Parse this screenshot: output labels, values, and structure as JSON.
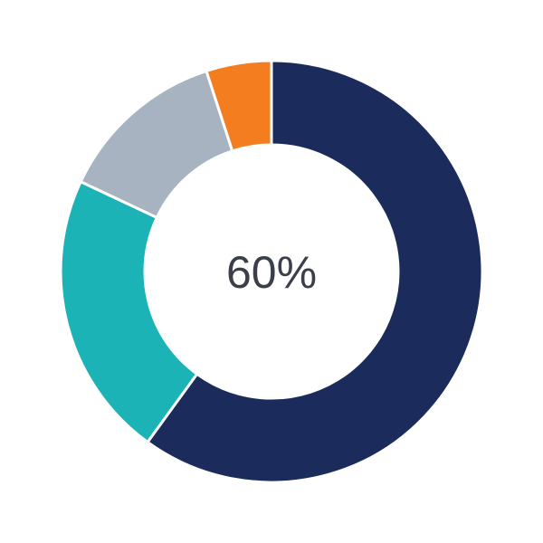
{
  "chart_data": {
    "type": "pie",
    "variant": "donut",
    "center_label": "60%",
    "slices": [
      {
        "value": 60,
        "color": "#1b2b5b"
      },
      {
        "value": 22,
        "color": "#1cb3b6"
      },
      {
        "value": 13,
        "color": "#a8b3c2"
      },
      {
        "value": 5,
        "color": "#f47d20"
      }
    ],
    "start": "top",
    "direction": "clockwise"
  }
}
